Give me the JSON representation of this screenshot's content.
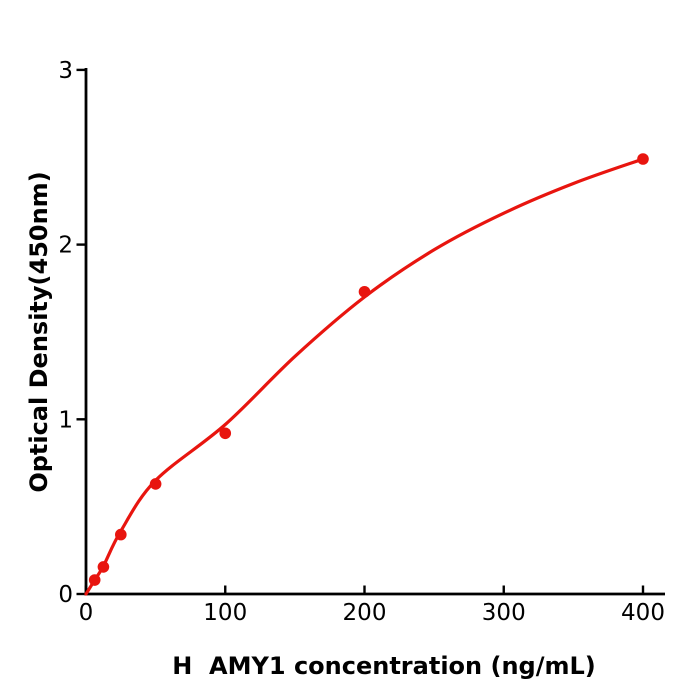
{
  "figure": {
    "background": "#ffffff"
  },
  "chart_data": {
    "type": "scatter",
    "title": "",
    "xlabel": "H  AMY1 concentration (ng/mL)",
    "ylabel": "Optical Density(450nm)",
    "xlim": [
      0,
      415
    ],
    "ylim": [
      0,
      3
    ],
    "x_ticks": [
      0,
      100,
      200,
      300,
      400
    ],
    "y_ticks": [
      0,
      1,
      2,
      3
    ],
    "grid": false,
    "legend": false,
    "axis_color": "#000000",
    "series": [
      {
        "name": "standards",
        "role": "points",
        "color": "#e8150f",
        "x": [
          6.25,
          12.5,
          25,
          50,
          100,
          200,
          400
        ],
        "y": [
          0.08,
          0.155,
          0.34,
          0.63,
          0.92,
          1.73,
          2.49
        ]
      },
      {
        "name": "fitted-curve",
        "role": "line",
        "color": "#e8150f",
        "x": [
          0,
          6.25,
          12.5,
          25,
          50,
          100,
          150,
          200,
          250,
          300,
          350,
          400
        ],
        "y": [
          0,
          0.08,
          0.16,
          0.36,
          0.65,
          0.97,
          1.36,
          1.7,
          1.97,
          2.18,
          2.35,
          2.49
        ]
      }
    ]
  }
}
